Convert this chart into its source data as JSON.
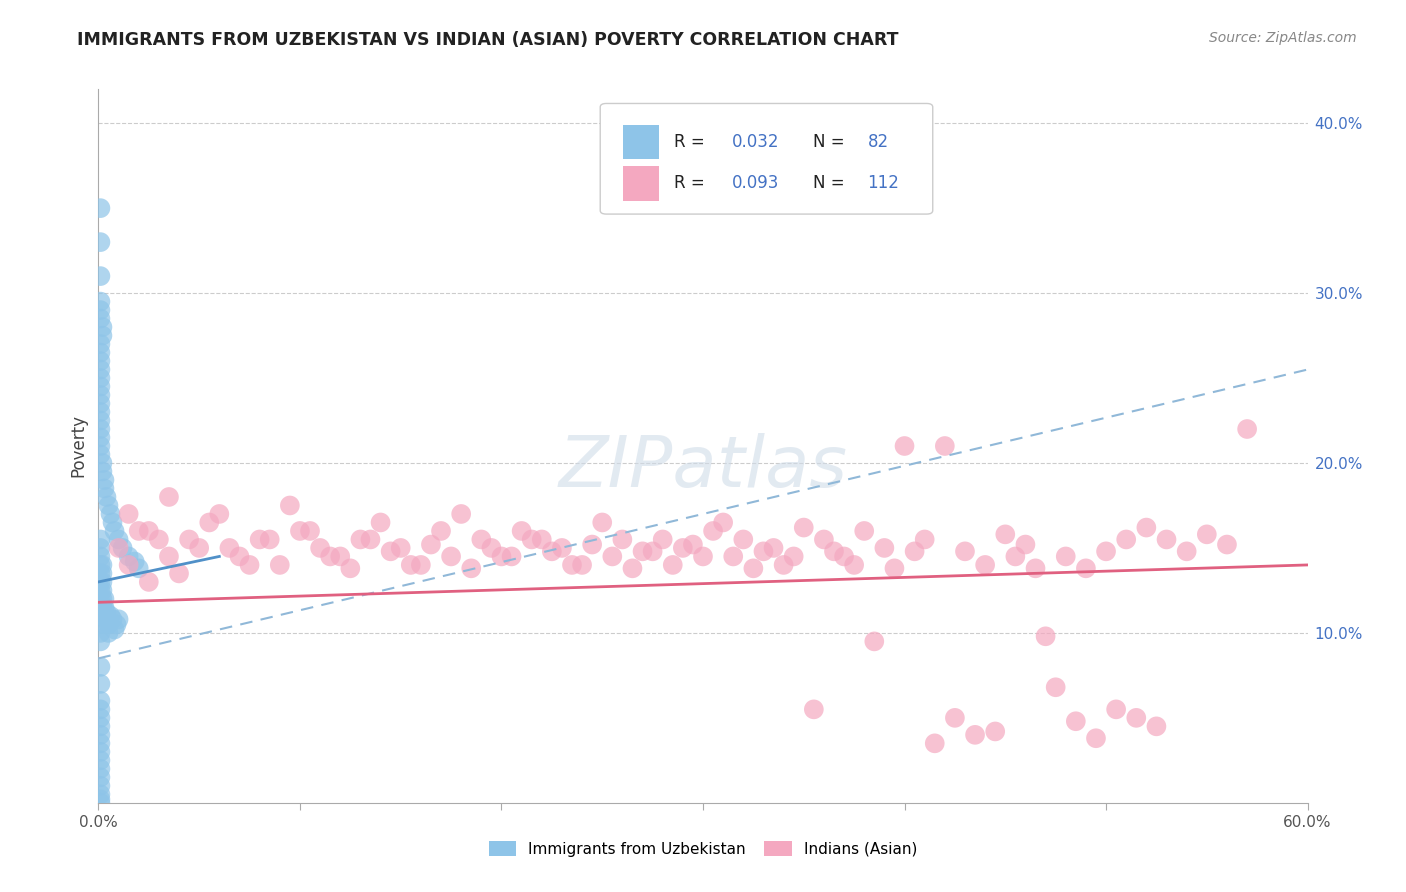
{
  "title": "IMMIGRANTS FROM UZBEKISTAN VS INDIAN (ASIAN) POVERTY CORRELATION CHART",
  "source": "Source: ZipAtlas.com",
  "ylabel": "Poverty",
  "xlim": [
    0.0,
    0.6
  ],
  "ylim": [
    0.0,
    0.42
  ],
  "R_uzbek": 0.032,
  "N_uzbek": 82,
  "R_indian": 0.093,
  "N_indian": 112,
  "color_uzbek": "#8ec4e8",
  "color_indian": "#f4a8c0",
  "color_uzbek_line": "#5090c8",
  "color_indian_line": "#e06080",
  "color_dashed": "#90b8d8",
  "legend_label_uzbek": "Immigrants from Uzbekistan",
  "legend_label_indian": "Indians (Asian)",
  "uzbek_line_x0": 0.0,
  "uzbek_line_y0": 0.132,
  "uzbek_line_x1": 0.05,
  "uzbek_line_y1": 0.145,
  "indian_line_y0": 0.118,
  "indian_line_y1": 0.14,
  "dashed_line_y0": 0.085,
  "dashed_line_y1": 0.255,
  "uzbek_dots_x": [
    0.001,
    0.001,
    0.001,
    0.001,
    0.001,
    0.001,
    0.001,
    0.001,
    0.001,
    0.001,
    0.002,
    0.002,
    0.002,
    0.002,
    0.002,
    0.002,
    0.002,
    0.003,
    0.003,
    0.003,
    0.003,
    0.004,
    0.004,
    0.005,
    0.005,
    0.006,
    0.007,
    0.008,
    0.009,
    0.01,
    0.001,
    0.001,
    0.001,
    0.002,
    0.002,
    0.001,
    0.001,
    0.001,
    0.001,
    0.001,
    0.001,
    0.001,
    0.001,
    0.001,
    0.001,
    0.001,
    0.001,
    0.001,
    0.001,
    0.002,
    0.002,
    0.003,
    0.003,
    0.004,
    0.005,
    0.006,
    0.007,
    0.008,
    0.01,
    0.012,
    0.015,
    0.018,
    0.02,
    0.001,
    0.001,
    0.001,
    0.001,
    0.001,
    0.001,
    0.001,
    0.001,
    0.001,
    0.001,
    0.001,
    0.001,
    0.001,
    0.001,
    0.001,
    0.001,
    0.001,
    0.001,
    0.001
  ],
  "uzbek_dots_y": [
    0.12,
    0.125,
    0.13,
    0.135,
    0.14,
    0.145,
    0.15,
    0.155,
    0.1,
    0.095,
    0.11,
    0.115,
    0.12,
    0.125,
    0.13,
    0.135,
    0.14,
    0.105,
    0.11,
    0.115,
    0.12,
    0.108,
    0.112,
    0.1,
    0.105,
    0.11,
    0.108,
    0.102,
    0.105,
    0.108,
    0.29,
    0.295,
    0.285,
    0.275,
    0.28,
    0.26,
    0.265,
    0.27,
    0.255,
    0.25,
    0.245,
    0.24,
    0.235,
    0.23,
    0.225,
    0.22,
    0.215,
    0.21,
    0.205,
    0.2,
    0.195,
    0.19,
    0.185,
    0.18,
    0.175,
    0.17,
    0.165,
    0.16,
    0.155,
    0.15,
    0.145,
    0.142,
    0.138,
    0.06,
    0.055,
    0.05,
    0.045,
    0.04,
    0.035,
    0.03,
    0.025,
    0.02,
    0.015,
    0.01,
    0.005,
    0.002,
    0.0,
    0.35,
    0.33,
    0.31,
    0.07,
    0.08
  ],
  "indian_dots_x": [
    0.01,
    0.015,
    0.02,
    0.025,
    0.03,
    0.035,
    0.04,
    0.05,
    0.06,
    0.07,
    0.08,
    0.09,
    0.1,
    0.11,
    0.12,
    0.13,
    0.14,
    0.15,
    0.16,
    0.17,
    0.18,
    0.19,
    0.2,
    0.21,
    0.22,
    0.23,
    0.24,
    0.25,
    0.26,
    0.27,
    0.28,
    0.29,
    0.3,
    0.31,
    0.32,
    0.33,
    0.34,
    0.35,
    0.36,
    0.37,
    0.38,
    0.39,
    0.4,
    0.41,
    0.42,
    0.43,
    0.44,
    0.45,
    0.46,
    0.47,
    0.48,
    0.49,
    0.5,
    0.51,
    0.52,
    0.53,
    0.54,
    0.55,
    0.56,
    0.57,
    0.015,
    0.025,
    0.035,
    0.045,
    0.055,
    0.065,
    0.075,
    0.085,
    0.095,
    0.105,
    0.115,
    0.125,
    0.135,
    0.145,
    0.155,
    0.165,
    0.175,
    0.185,
    0.195,
    0.205,
    0.215,
    0.225,
    0.235,
    0.245,
    0.255,
    0.265,
    0.275,
    0.285,
    0.295,
    0.305,
    0.315,
    0.325,
    0.335,
    0.345,
    0.355,
    0.365,
    0.375,
    0.385,
    0.395,
    0.405,
    0.415,
    0.425,
    0.435,
    0.445,
    0.455,
    0.465,
    0.475,
    0.485,
    0.495,
    0.505,
    0.515,
    0.525
  ],
  "indian_dots_y": [
    0.15,
    0.14,
    0.16,
    0.13,
    0.155,
    0.145,
    0.135,
    0.15,
    0.17,
    0.145,
    0.155,
    0.14,
    0.16,
    0.15,
    0.145,
    0.155,
    0.165,
    0.15,
    0.14,
    0.16,
    0.17,
    0.155,
    0.145,
    0.16,
    0.155,
    0.15,
    0.14,
    0.165,
    0.155,
    0.148,
    0.155,
    0.15,
    0.145,
    0.165,
    0.155,
    0.148,
    0.14,
    0.162,
    0.155,
    0.145,
    0.16,
    0.15,
    0.21,
    0.155,
    0.21,
    0.148,
    0.14,
    0.158,
    0.152,
    0.098,
    0.145,
    0.138,
    0.148,
    0.155,
    0.162,
    0.155,
    0.148,
    0.158,
    0.152,
    0.22,
    0.17,
    0.16,
    0.18,
    0.155,
    0.165,
    0.15,
    0.14,
    0.155,
    0.175,
    0.16,
    0.145,
    0.138,
    0.155,
    0.148,
    0.14,
    0.152,
    0.145,
    0.138,
    0.15,
    0.145,
    0.155,
    0.148,
    0.14,
    0.152,
    0.145,
    0.138,
    0.148,
    0.14,
    0.152,
    0.16,
    0.145,
    0.138,
    0.15,
    0.145,
    0.055,
    0.148,
    0.14,
    0.095,
    0.138,
    0.148,
    0.035,
    0.05,
    0.04,
    0.042,
    0.145,
    0.138,
    0.068,
    0.048,
    0.038,
    0.055,
    0.05,
    0.045
  ]
}
